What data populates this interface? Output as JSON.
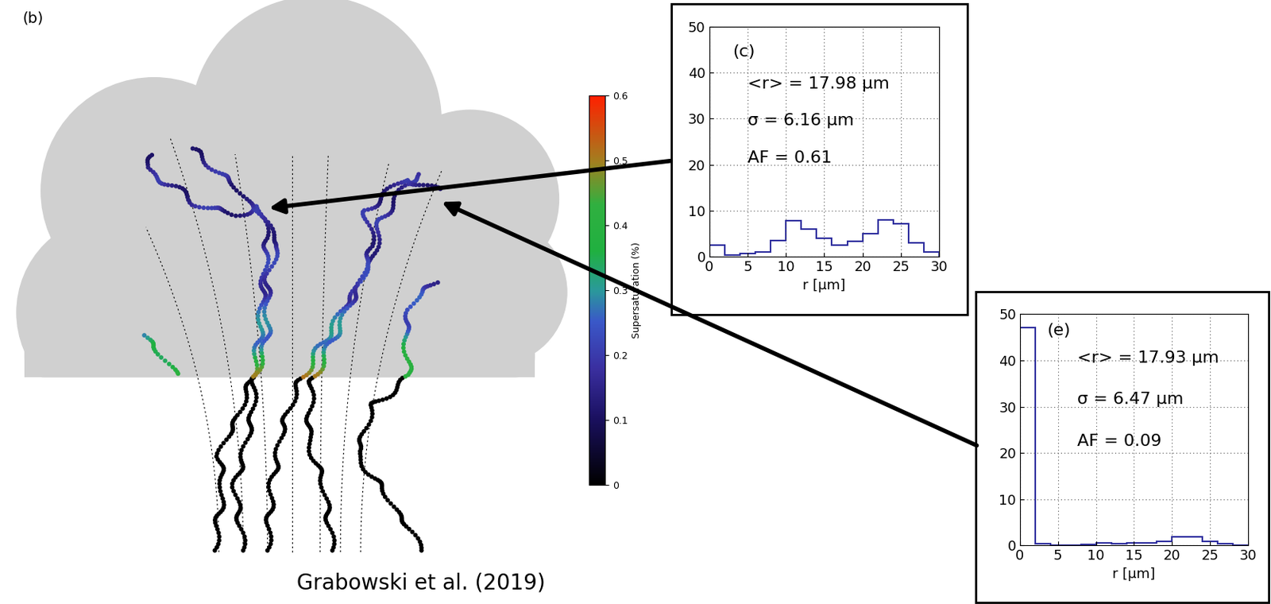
{
  "diagram": {
    "panel_label": "(b)",
    "credit": "Grabowski et al. (2019)",
    "colorbar": {
      "label": "Supersaturation (%)",
      "range": [
        0,
        0.6
      ],
      "ticks": [
        0,
        0.1,
        0.2,
        0.3,
        0.4,
        0.5,
        0.6
      ]
    }
  },
  "chart_data": [
    {
      "type": "histogram",
      "annotations": [
        "(c)",
        "<r> = 17.98 μm",
        "σ = 6.16 μm",
        "AF = 0.61"
      ],
      "x_label": "r [μm]",
      "bins": [
        0,
        2,
        4,
        6,
        8,
        10,
        12,
        14,
        16,
        18,
        20,
        22,
        24,
        26,
        28,
        30
      ],
      "counts": [
        2.5,
        0.3,
        0.7,
        1.0,
        3.5,
        7.8,
        6.0,
        4.0,
        2.5,
        3.3,
        5.0,
        8.0,
        7.2,
        3.0,
        1.0
      ],
      "color": "#2f2f9f",
      "xlim": [
        0,
        30
      ],
      "xticks": [
        0,
        5,
        10,
        15,
        20,
        25,
        30
      ],
      "ylim": [
        0,
        50
      ],
      "yticks": [
        0,
        10,
        20,
        30,
        40,
        50
      ],
      "grid": true
    },
    {
      "type": "histogram",
      "annotations": [
        "(e)",
        "<r> = 17.93 μm",
        "σ = 6.47 μm",
        "AF = 0.09"
      ],
      "x_label": "r [μm]",
      "bins": [
        0,
        2,
        4,
        6,
        8,
        10,
        12,
        14,
        16,
        18,
        20,
        22,
        24,
        26,
        28,
        30
      ],
      "counts": [
        47,
        0.3,
        0.1,
        0.1,
        0.2,
        0.5,
        0.4,
        0.6,
        0.5,
        0.8,
        1.8,
        1.8,
        0.8,
        0.3,
        0.1
      ],
      "color": "#2f2f9f",
      "xlim": [
        0,
        30
      ],
      "xticks": [
        0,
        5,
        10,
        15,
        20,
        25,
        30
      ],
      "ylim": [
        0,
        50
      ],
      "yticks": [
        0,
        10,
        20,
        30,
        40,
        50
      ],
      "grid": true
    }
  ]
}
